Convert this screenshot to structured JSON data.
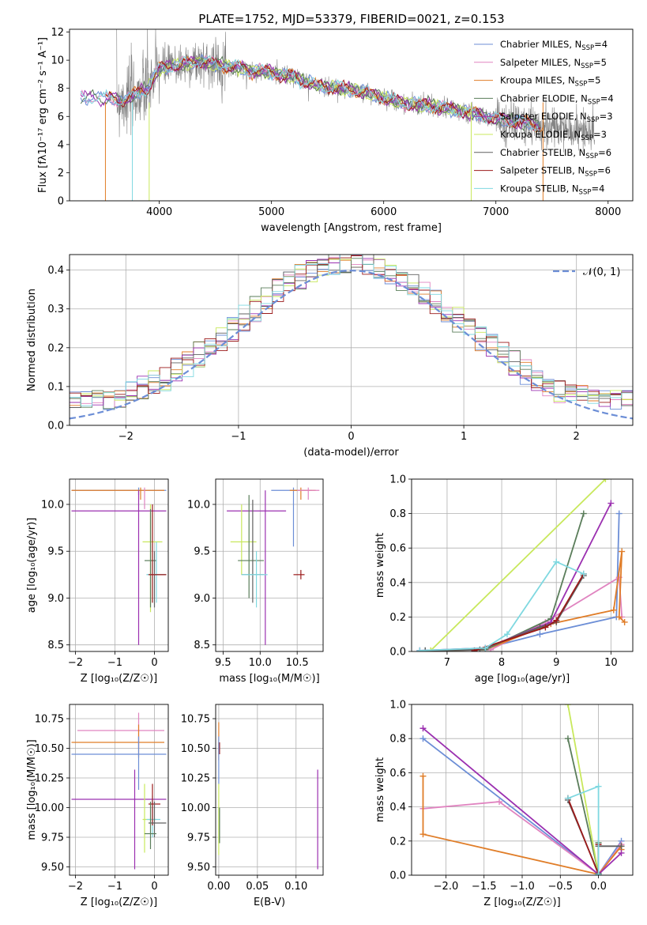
{
  "title": "PLATE=1752, MJD=53379, FIBERID=0021, z=0.153",
  "colors": [
    "#6c8ed6",
    "#e084c0",
    "#e07d28",
    "#5a7d5a",
    "#9b30b0",
    "#c8e85c",
    "#606060",
    "#9b1a1a",
    "#7fd8e0"
  ],
  "chart_data": [
    {
      "name": "spectrum",
      "type": "line",
      "xlabel": "wavelength [Angstrom, rest frame]",
      "ylabel": "Flux [fλ10⁻¹⁷ erg cm⁻² s⁻¹ A⁻¹]",
      "xlim": [
        3200,
        8220
      ],
      "ylim": [
        0,
        12.2
      ],
      "xticks": [
        4000,
        5000,
        6000,
        7000,
        8000
      ],
      "yticks": [
        0,
        2,
        4,
        6,
        8,
        10,
        12
      ],
      "legend_position": "right",
      "legend": [
        {
          "label": "Chabrier MILES, N",
          "sub": "SSP",
          "tail": "=4"
        },
        {
          "label": "Salpeter MILES, N",
          "sub": "SSP",
          "tail": "=5"
        },
        {
          "label": "Kroupa MILES, N",
          "sub": "SSP",
          "tail": "=5"
        },
        {
          "label": "Chabrier ELODIE, N",
          "sub": "SSP",
          "tail": "=4"
        },
        {
          "label": "Salpeter ELODIE, N",
          "sub": "SSP",
          "tail": "=3"
        },
        {
          "label": "Kroupa ELODIE, N",
          "sub": "SSP",
          "tail": "=3"
        },
        {
          "label": "Chabrier STELIB, N",
          "sub": "SSP",
          "tail": "=6"
        },
        {
          "label": "Salpeter STELIB, N",
          "sub": "SSP",
          "tail": "=6"
        },
        {
          "label": "Kroupa STELIB, N",
          "sub": "SSP",
          "tail": "=4"
        }
      ],
      "continuum": [
        [
          3300,
          7.4
        ],
        [
          3500,
          7.3
        ],
        [
          3700,
          7.2
        ],
        [
          3900,
          8.0
        ],
        [
          4000,
          9.4
        ],
        [
          4200,
          9.7
        ],
        [
          4400,
          9.9
        ],
        [
          4600,
          9.6
        ],
        [
          4800,
          9.3
        ],
        [
          5000,
          9.1
        ],
        [
          5200,
          8.8
        ],
        [
          5400,
          8.2
        ],
        [
          5600,
          8.0
        ],
        [
          5800,
          7.8
        ],
        [
          6000,
          7.3
        ],
        [
          6200,
          6.9
        ],
        [
          6400,
          6.8
        ],
        [
          6600,
          6.5
        ],
        [
          6800,
          6.2
        ],
        [
          7000,
          5.8
        ],
        [
          7200,
          5.6
        ],
        [
          7400,
          5.3
        ],
        [
          7600,
          5.0
        ],
        [
          7800,
          4.9
        ],
        [
          7900,
          4.8
        ]
      ]
    },
    {
      "name": "residual_histogram",
      "type": "line",
      "xlabel": "(data-model)/error",
      "ylabel": "Normed distribution",
      "xlim": [
        -2.5,
        2.5
      ],
      "ylim": [
        0,
        0.44
      ],
      "xticks": [
        -2,
        -1,
        0,
        1,
        2
      ],
      "yticks": [
        0.0,
        0.1,
        0.2,
        0.3,
        0.4
      ],
      "legend_position": "top-right",
      "legend": [
        "𝒩(0, 1)"
      ],
      "gaussian": {
        "mean": 0,
        "sigma": 1
      }
    },
    {
      "name": "age_vs_Z",
      "type": "scatter",
      "xlabel": "Z [log₁₀(Z/Z☉)]",
      "ylabel": "age  [log₁₀(age/yr)]",
      "xlim": [
        -2.15,
        0.35
      ],
      "ylim": [
        8.43,
        10.27
      ],
      "xticks": [
        -2,
        -1,
        0
      ],
      "yticks": [
        8.5,
        9.0,
        9.5,
        10.0
      ],
      "series": [
        {
          "c": 0,
          "x": -0.4,
          "y": 10.15,
          "xl": -2.1,
          "xh": 0.3,
          "yl": 10.1,
          "yh": 10.18
        },
        {
          "c": 2,
          "x": -0.35,
          "y": 10.15,
          "xl": -2.1,
          "xh": 0.25,
          "yl": 10.05,
          "yh": 10.18
        },
        {
          "c": 4,
          "x": -0.4,
          "y": 9.93,
          "xl": -2.1,
          "xh": 0.3,
          "yl": 8.5,
          "yh": 10.15
        },
        {
          "c": 1,
          "x": -0.25,
          "y": 10.1,
          "yl": 9.95,
          "yh": 10.18
        },
        {
          "c": 5,
          "x": -0.1,
          "y": 9.6,
          "xl": -0.3,
          "xh": 0.2,
          "yl": 8.85,
          "yh": 10.0
        },
        {
          "c": 3,
          "x": -0.1,
          "y": 9.4,
          "xl": -0.25,
          "xh": 0.05,
          "yl": 8.9,
          "yh": 9.95
        },
        {
          "c": 6,
          "x": 0.0,
          "y": 9.25,
          "xl": -0.2,
          "xh": 0.3,
          "yl": 8.9,
          "yh": 9.5
        },
        {
          "c": 8,
          "x": 0.05,
          "y": 9.25,
          "xl": -0.2,
          "xh": 0.3,
          "yl": 8.95,
          "yh": 9.6
        },
        {
          "c": 7,
          "x": -0.05,
          "y": 9.25,
          "xl": -0.15,
          "xh": 0.3,
          "yl": 8.95,
          "yh": 10.0
        }
      ]
    },
    {
      "name": "age_vs_mass",
      "type": "scatter",
      "xlabel": "mass [log₁₀(M/M☉)]",
      "ylabel": "",
      "xlim": [
        9.4,
        10.85
      ],
      "ylim": [
        8.43,
        10.27
      ],
      "xticks": [
        9.5,
        10.0,
        10.5
      ],
      "yticks": [
        8.5,
        9.0,
        9.5,
        10.0
      ],
      "series": [
        {
          "c": 0,
          "x": 10.45,
          "y": 10.15,
          "xl": 10.15,
          "xh": 10.7,
          "yl": 9.55,
          "yh": 10.18
        },
        {
          "c": 2,
          "x": 10.55,
          "y": 10.15,
          "xl": 10.4,
          "xh": 10.75,
          "yl": 10.05,
          "yh": 10.18
        },
        {
          "c": 1,
          "x": 10.65,
          "y": 10.15,
          "xl": 10.5,
          "xh": 10.8,
          "yl": 10.05,
          "yh": 10.18
        },
        {
          "c": 4,
          "x": 10.07,
          "y": 9.93,
          "xl": 9.55,
          "xh": 10.35,
          "yl": 8.5,
          "yh": 10.15
        },
        {
          "c": 5,
          "x": 9.75,
          "y": 9.6,
          "xl": 9.6,
          "xh": 9.95,
          "yl": 9.25,
          "yh": 10.0
        },
        {
          "c": 3,
          "x": 9.85,
          "y": 9.4,
          "xl": 9.7,
          "xh": 10.05,
          "yl": 9.0,
          "yh": 10.1
        },
        {
          "c": 6,
          "x": 9.9,
          "y": 9.25,
          "xl": 9.75,
          "xh": 10.05,
          "yl": 8.95,
          "yh": 10.05
        },
        {
          "c": 8,
          "x": 9.95,
          "y": 9.25,
          "xl": 9.75,
          "xh": 10.1,
          "yl": 8.9,
          "yh": 9.5
        },
        {
          "c": 7,
          "x": 10.55,
          "y": 9.25,
          "xl": 10.45,
          "xh": 10.6,
          "yl": 9.2,
          "yh": 9.3
        }
      ]
    },
    {
      "name": "mass_weight_vs_age",
      "type": "line",
      "xlabel": "age  [log₁₀(age/yr)]",
      "ylabel": "mass weight",
      "xlim": [
        6.35,
        10.4
      ],
      "ylim": [
        0,
        1.0
      ],
      "xticks": [
        7,
        8,
        9,
        10
      ],
      "yticks": [
        0.0,
        0.2,
        0.4,
        0.6,
        0.8,
        1.0
      ],
      "series": [
        {
          "c": 0,
          "x": [
            6.6,
            7.6,
            8.7,
            10.1,
            10.15
          ],
          "y": [
            0.005,
            0.01,
            0.1,
            0.2,
            0.8
          ]
        },
        {
          "c": 1,
          "x": [
            6.5,
            7.8,
            8.8,
            10.15,
            10.2
          ],
          "y": [
            0.005,
            0.01,
            0.17,
            0.43,
            0.2
          ]
        },
        {
          "c": 2,
          "x": [
            6.7,
            7.7,
            8.9,
            10.05,
            10.2,
            10.15,
            10.25
          ],
          "y": [
            0.005,
            0.01,
            0.16,
            0.24,
            0.58,
            0.2,
            0.17
          ]
        },
        {
          "c": 3,
          "x": [
            6.6,
            7.7,
            8.9,
            9.5
          ],
          "y": [
            0.005,
            0.01,
            0.19,
            0.8
          ]
        },
        {
          "c": 4,
          "x": [
            6.5,
            7.7,
            8.9,
            10.0
          ],
          "y": [
            0.005,
            0.02,
            0.17,
            0.86
          ]
        },
        {
          "c": 5,
          "x": [
            6.7,
            9.9
          ],
          "y": [
            0.005,
            1.0
          ]
        },
        {
          "c": 6,
          "x": [
            6.6,
            7.6,
            8.7,
            9.0,
            9.5
          ],
          "y": [
            0.005,
            0.01,
            0.14,
            0.17,
            0.44
          ]
        },
        {
          "c": 7,
          "x": [
            7.5,
            8.8,
            9.0,
            9.5
          ],
          "y": [
            0.005,
            0.14,
            0.18,
            0.45
          ]
        },
        {
          "c": 8,
          "x": [
            6.5,
            7.7,
            8.1,
            9.0,
            9.5
          ],
          "y": [
            0.005,
            0.02,
            0.1,
            0.52,
            0.45
          ]
        }
      ]
    },
    {
      "name": "mass_vs_Z",
      "type": "scatter",
      "xlabel": "Z [log₁₀(Z/Z☉)]",
      "ylabel": "mass [log₁₀(M/M☉)]",
      "xlim": [
        -2.15,
        0.35
      ],
      "ylim": [
        9.43,
        10.87
      ],
      "xticks": [
        -2,
        -1,
        0
      ],
      "yticks": [
        9.5,
        9.75,
        10.0,
        10.25,
        10.5,
        10.75
      ],
      "series": [
        {
          "c": 1,
          "x": -0.4,
          "y": 10.65,
          "xl": -1.95,
          "xh": 0.25,
          "yl": 10.5,
          "yh": 10.8
        },
        {
          "c": 2,
          "x": -0.4,
          "y": 10.55,
          "xl": -2.1,
          "xh": 0.25,
          "yl": 10.42,
          "yh": 10.7
        },
        {
          "c": 0,
          "x": -0.4,
          "y": 10.45,
          "xl": -2.1,
          "xh": 0.3,
          "yl": 10.15,
          "yh": 10.6
        },
        {
          "c": 4,
          "x": -0.5,
          "y": 10.07,
          "xl": -2.1,
          "xh": 0.3,
          "yl": 9.48,
          "yh": 10.32
        },
        {
          "c": 5,
          "x": -0.25,
          "y": 9.9,
          "xl": -0.3,
          "xh": 0.05,
          "yl": 9.62,
          "yh": 10.2
        },
        {
          "c": 8,
          "x": -0.05,
          "y": 9.9,
          "xl": -0.2,
          "xh": 0.15,
          "yl": 9.75,
          "yh": 10.1
        },
        {
          "c": 7,
          "x": -0.05,
          "y": 10.03,
          "xl": -0.15,
          "xh": 0.15,
          "yl": 9.85,
          "yh": 10.2
        },
        {
          "c": 6,
          "x": 0.0,
          "y": 9.87,
          "xl": -0.15,
          "xh": 0.3,
          "yl": 9.75,
          "yh": 10.05
        },
        {
          "c": 3,
          "x": -0.1,
          "y": 9.78,
          "xl": -0.25,
          "xh": 0.05,
          "yl": 9.65,
          "yh": 10.05
        }
      ]
    },
    {
      "name": "mass_vs_EBV",
      "type": "scatter",
      "xlabel": "E(B-V)",
      "ylabel": "",
      "xlim": [
        -0.004,
        0.135
      ],
      "ylim": [
        9.43,
        10.87
      ],
      "xticks": [
        0.0,
        0.05,
        0.1
      ],
      "yticks": [
        9.5,
        9.75,
        10.0,
        10.25,
        10.5,
        10.75
      ],
      "series": [
        {
          "c": 2,
          "x": 0.0,
          "y": 10.55,
          "yl": 10.4,
          "yh": 10.72
        },
        {
          "c": 7,
          "x": 0.001,
          "y": 10.5,
          "yl": 10.45,
          "yh": 10.55
        },
        {
          "c": 0,
          "x": 0.0,
          "y": 10.45,
          "yl": 10.2,
          "yh": 10.6
        },
        {
          "c": 5,
          "x": 0.0,
          "y": 9.9,
          "yl": 9.6,
          "yh": 10.2
        },
        {
          "c": 3,
          "x": 0.001,
          "y": 9.8,
          "yl": 9.7,
          "yh": 10.0
        },
        {
          "c": 4,
          "x": 0.128,
          "y": 10.07,
          "yl": 9.48,
          "yh": 10.32
        }
      ]
    },
    {
      "name": "mass_weight_vs_Z",
      "type": "line",
      "xlabel": "Z [log₁₀(Z/Z☉)]",
      "ylabel": "mass weight",
      "xlim": [
        -2.45,
        0.45
      ],
      "ylim": [
        0,
        1.0
      ],
      "xticks": [
        -2.0,
        -1.5,
        -1.0,
        -0.5,
        0.0
      ],
      "yticks": [
        0.0,
        0.2,
        0.4,
        0.6,
        0.8,
        1.0
      ],
      "series": [
        {
          "c": 0,
          "x": [
            -2.3,
            0.0,
            0.3
          ],
          "y": [
            0.8,
            0.005,
            0.2
          ]
        },
        {
          "c": 1,
          "x": [
            -2.3,
            -1.3,
            0.0,
            0.3
          ],
          "y": [
            0.39,
            0.43,
            0.005,
            0.18
          ]
        },
        {
          "c": 2,
          "x": [
            -2.3,
            -2.3,
            0.0,
            0.3,
            0.3
          ],
          "y": [
            0.58,
            0.24,
            0.005,
            0.17,
            0.15
          ]
        },
        {
          "c": 3,
          "x": [
            -0.4,
            0.0,
            0.0
          ],
          "y": [
            0.8,
            0.01,
            0.19
          ]
        },
        {
          "c": 4,
          "x": [
            -2.3,
            0.0,
            0.3
          ],
          "y": [
            0.86,
            0.005,
            0.13
          ]
        },
        {
          "c": 5,
          "x": [
            -0.4,
            0.0
          ],
          "y": [
            1.0,
            0.005
          ]
        },
        {
          "c": 6,
          "x": [
            -0.4,
            0.0,
            0.0,
            0.3
          ],
          "y": [
            0.44,
            0.01,
            0.17,
            0.17
          ]
        },
        {
          "c": 7,
          "x": [
            -0.4,
            0.0,
            0.0
          ],
          "y": [
            0.45,
            0.005,
            0.18
          ]
        },
        {
          "c": 8,
          "x": [
            -0.4,
            0.0,
            0.0
          ],
          "y": [
            0.45,
            0.52,
            0.005
          ]
        }
      ]
    }
  ]
}
